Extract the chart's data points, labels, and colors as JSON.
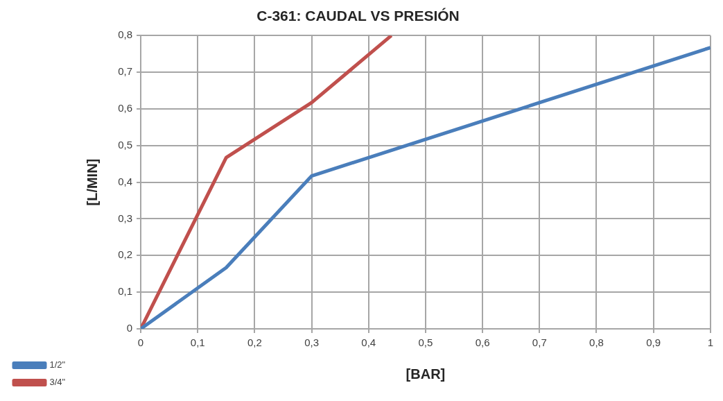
{
  "chart_data": {
    "type": "line",
    "title": "C-361: CAUDAL VS PRESIÓN",
    "xlabel": "[BAR]",
    "ylabel": "[L/MIN]",
    "xlim": [
      0,
      1
    ],
    "xticks": [
      0,
      {
        "value": 0.1,
        "label": "0,1"
      },
      {
        "value": 0.2,
        "label": "0,2"
      },
      {
        "value": 0.3,
        "label": "0,3"
      },
      {
        "value": 0.4,
        "label": "0,4"
      },
      {
        "value": 0.5,
        "label": "0,5"
      },
      {
        "value": 0.6,
        "label": "0,6"
      },
      {
        "value": 0.7,
        "label": "0,7"
      },
      {
        "value": 0.8,
        "label": "0,8"
      },
      {
        "value": 0.9,
        "label": "0,9"
      },
      1
    ],
    "ylim": [
      0,
      0.8
    ],
    "yticks": [
      0,
      {
        "value": 0.1,
        "label": "0,1"
      },
      {
        "value": 0.2,
        "label": "0,2"
      },
      {
        "value": 0.3,
        "label": "0,3"
      },
      {
        "value": 0.4,
        "label": "0,4"
      },
      {
        "value": 0.5,
        "label": "0,5"
      },
      {
        "value": 0.6,
        "label": "0,6"
      },
      {
        "value": 0.7,
        "label": "0,7"
      },
      {
        "value": 0.8,
        "label": "0,8"
      }
    ],
    "grid": true,
    "legend": "bottom left",
    "marker": "none",
    "line_style": "solid",
    "series": [
      {
        "name": "1/2\"",
        "color": "#4a7ebb",
        "x": [
          0,
          0.15,
          0.3,
          1
        ],
        "values": [
          0,
          0.167,
          0.417,
          0.767
        ]
      },
      {
        "name": "3/4\"",
        "color": "#c0504d",
        "x": [
          0,
          0.15,
          0.3,
          0.44
        ],
        "values": [
          0,
          0.467,
          0.617,
          0.8
        ]
      }
    ]
  }
}
